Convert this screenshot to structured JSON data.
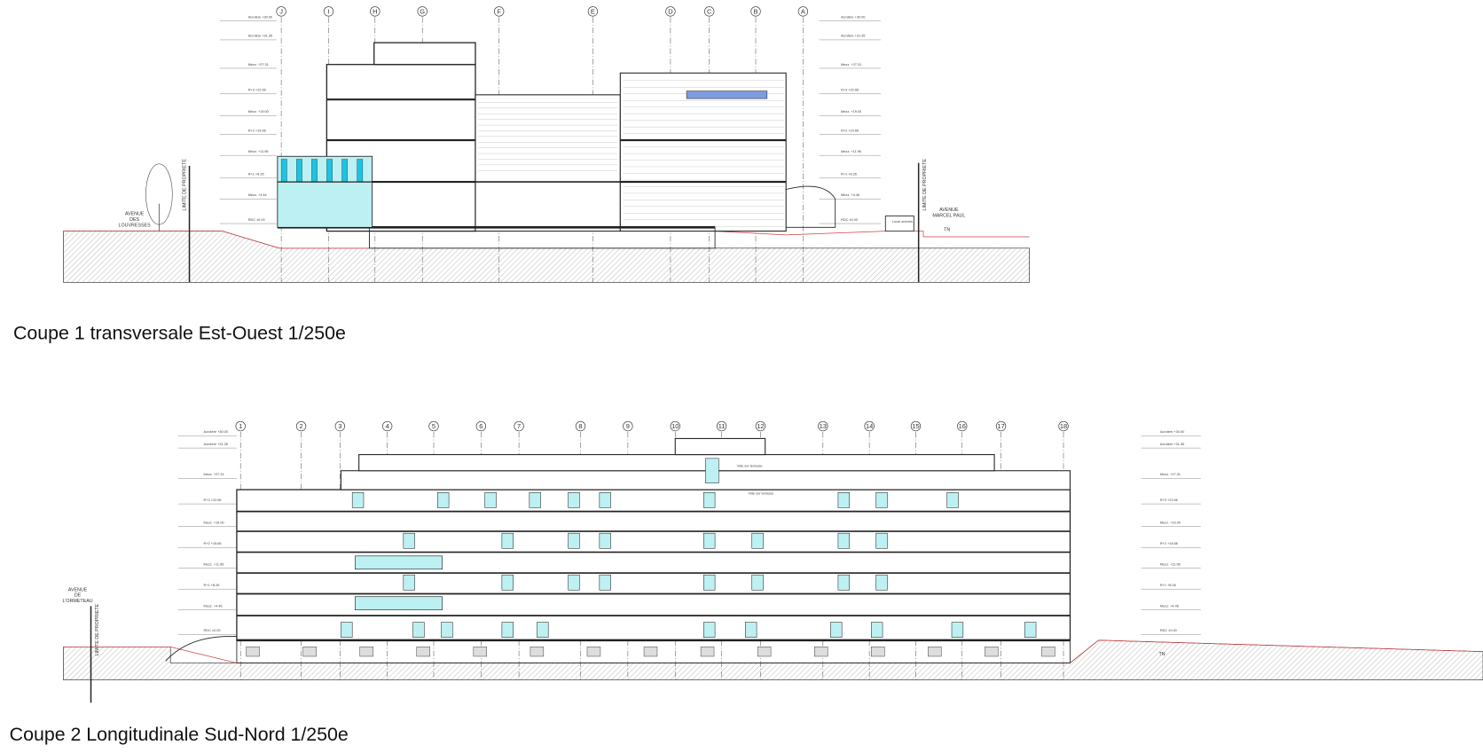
{
  "colors": {
    "glazing": "#1fc3e0",
    "glazing_light": "#bdf0f3",
    "skylight": "#7d9be0",
    "property_line": "#d04040",
    "ground_hatch": "#cfcfcf",
    "lines": "#222222"
  },
  "section1": {
    "title": "Coupe 1 transversale Est-Ouest 1/250e",
    "axes": [
      "J",
      "I",
      "H",
      "G",
      "F",
      "E",
      "D",
      "C",
      "B",
      "A"
    ],
    "levels": [
      "Acrotère +30.00",
      "Acrotère +31.35",
      "Mezz. +27.31",
      "R+3 +22.66",
      "Mezz. +19.00",
      "R+2 +15.66",
      "Mezz. +11.96",
      "R+1 +8.26",
      "Mezz. +4.46",
      "RDC ±0.00"
    ],
    "street_left": "AVENUE DES LOUVRESSES",
    "street_right": "AVENUE MARCEL PAUL",
    "property_limit": "LIMITE DE PROPRIETE",
    "tn": "TN",
    "local": "Local ordures"
  },
  "section2": {
    "title": "Coupe 2 Longitudinale Sud-Nord 1/250e",
    "axes": [
      "1",
      "2",
      "3",
      "4",
      "5",
      "6",
      "7",
      "8",
      "9",
      "10",
      "11",
      "12",
      "13",
      "14",
      "15",
      "16",
      "17",
      "18"
    ],
    "levels": [
      "Acrotère +30.00",
      "Acrotère +31.35",
      "Mezz. +27.31",
      "R+3 +22.66",
      "Mezz. +19.00",
      "R+2 +15.66",
      "Mezz. +11.96",
      "R+1 +8.26",
      "Mezz. +4.46",
      "RDC ±0.00"
    ],
    "street_left": "AVENUE DE L'ORMETEAU",
    "property_limit": "LIMITE DE PROPRIETE",
    "tn": "TN",
    "void_labels": [
      "Vide sur terrasse",
      "Vide sur terrasse"
    ]
  }
}
